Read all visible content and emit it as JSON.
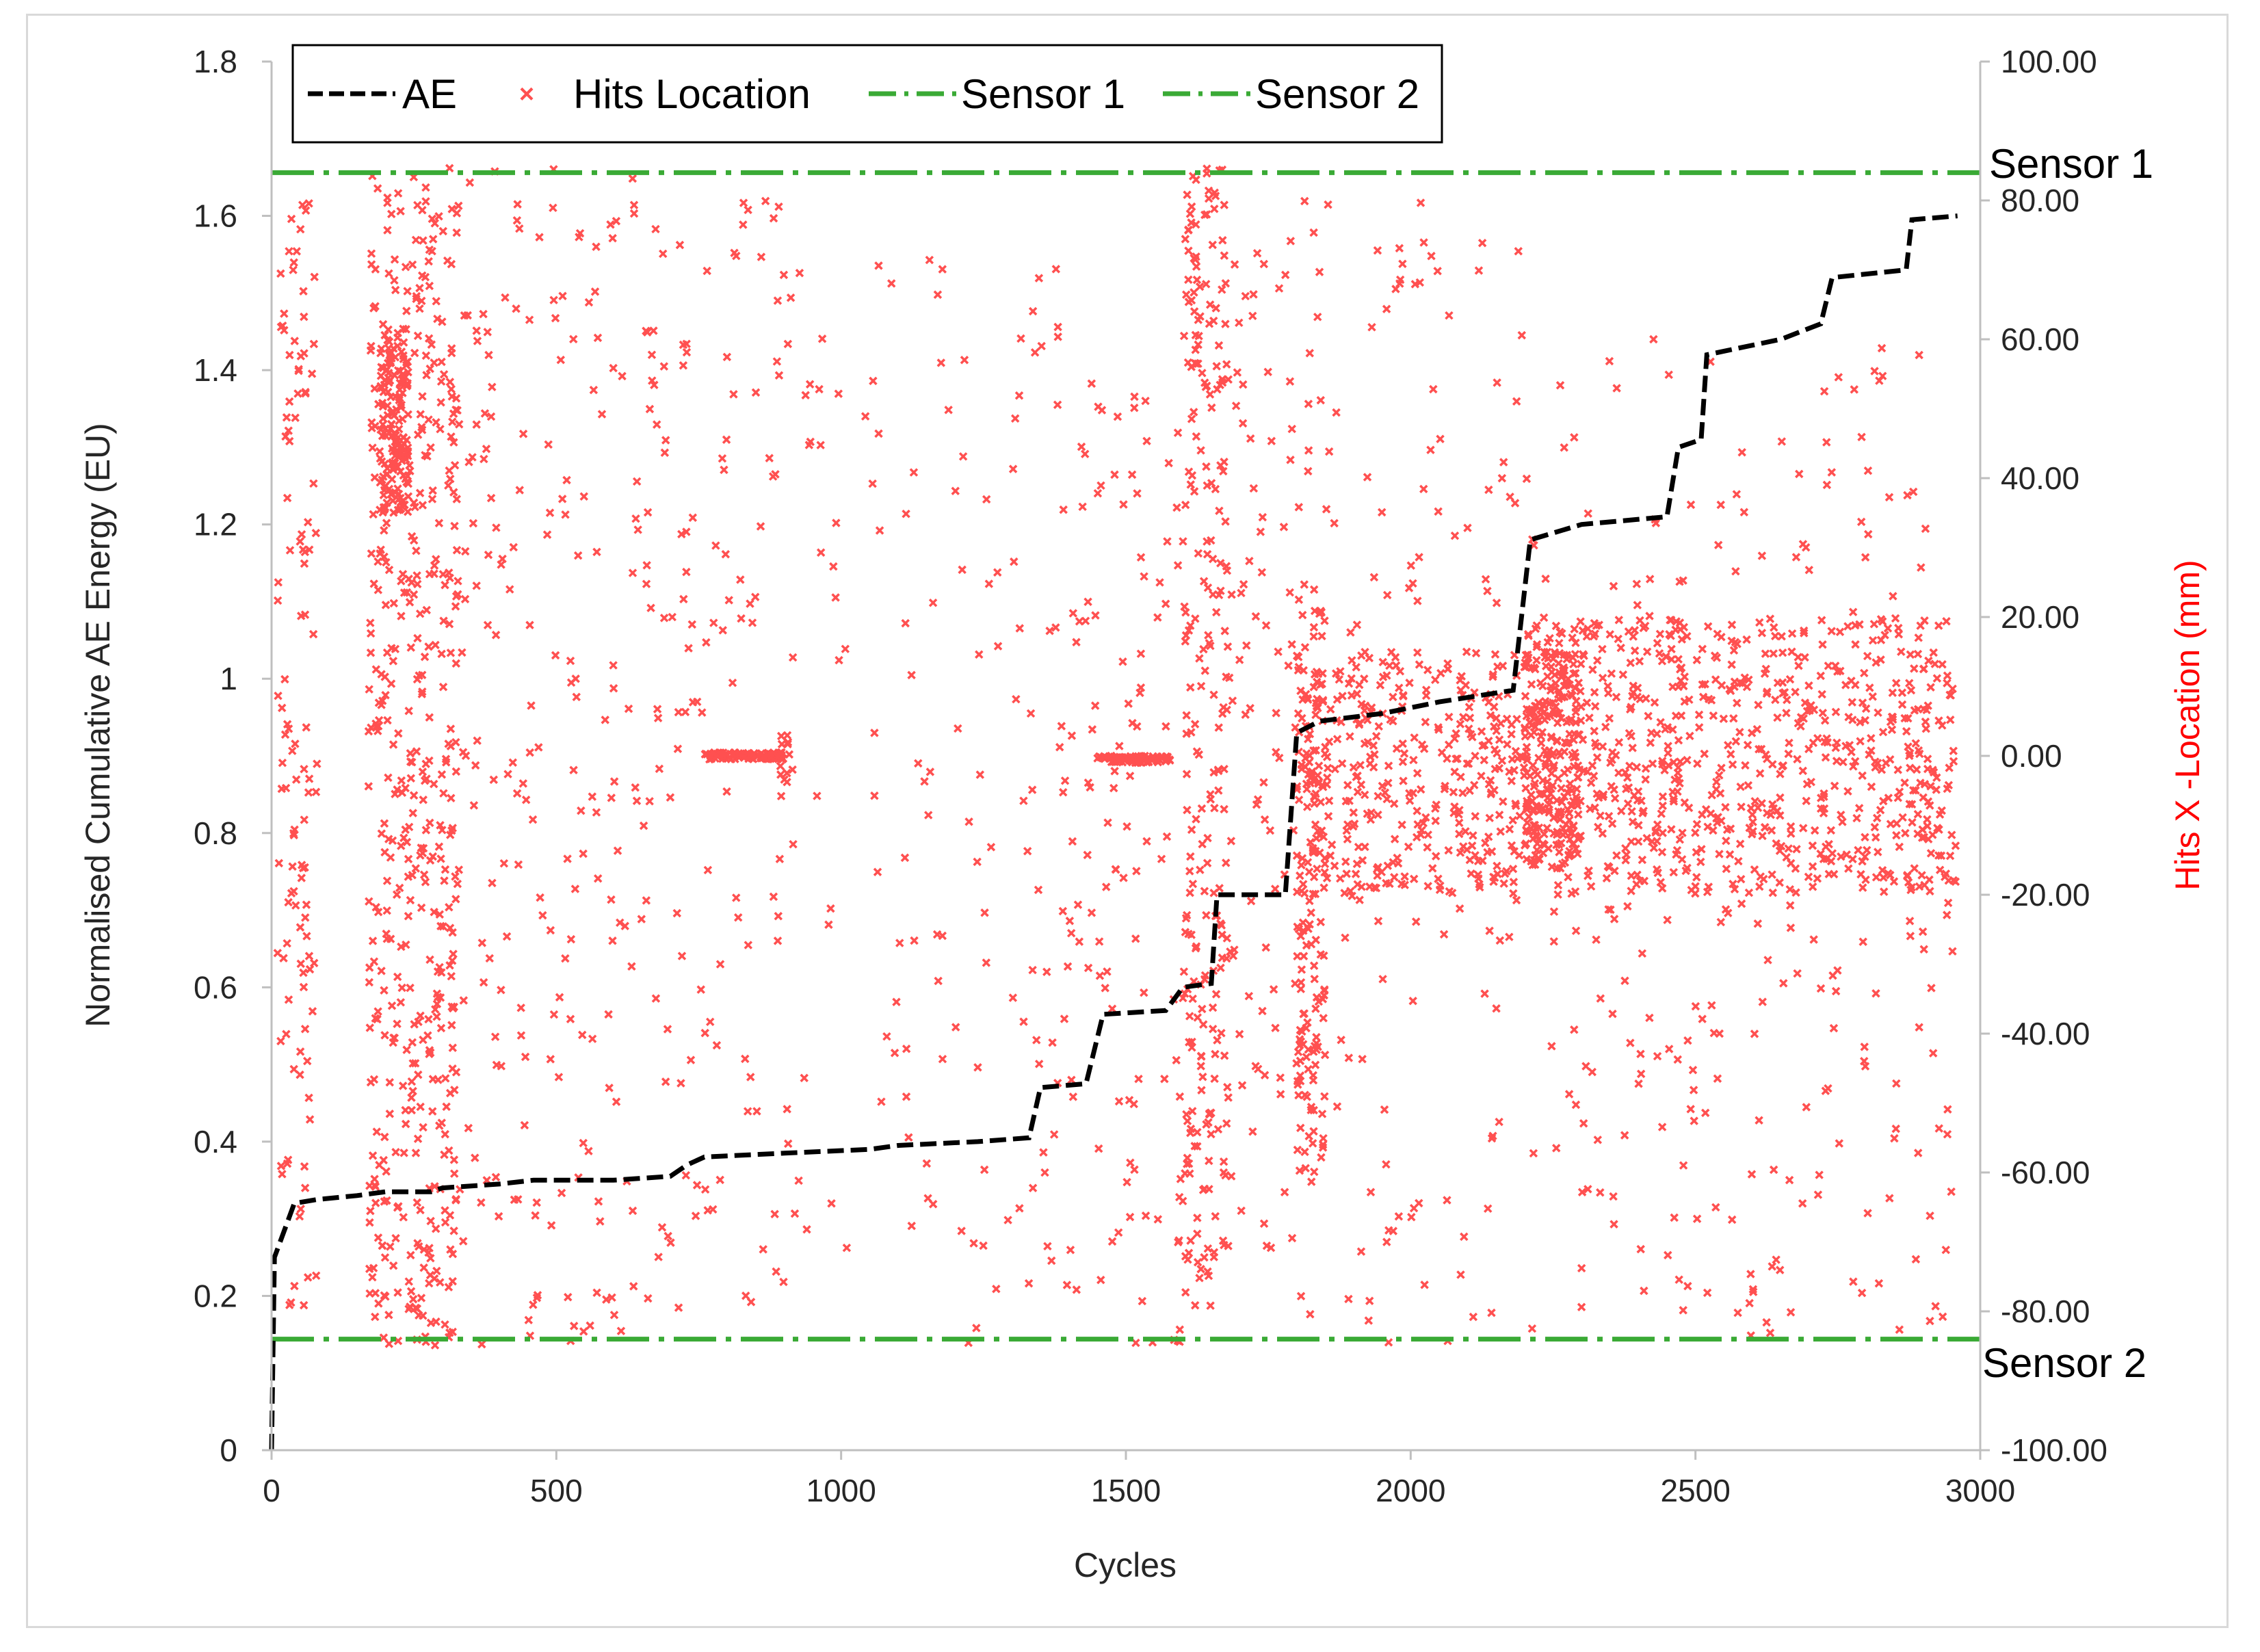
{
  "chart_data": {
    "type": "line",
    "title": "",
    "xlabel": "Cycles",
    "ylabel": "Normalised Cumulative AE Energy (EU)",
    "y2label": "Hits X -Location (mm)",
    "xlim": [
      0,
      3000
    ],
    "ylim": [
      0,
      1.8
    ],
    "y2lim": [
      -100,
      100
    ],
    "x_ticks": [
      "0",
      "500",
      "1000",
      "1500",
      "2000",
      "2500",
      "3000"
    ],
    "y_ticks": [
      "0",
      "0.2",
      "0.4",
      "0.6",
      "0.8",
      "1",
      "1.2",
      "1.4",
      "1.6",
      "1.8"
    ],
    "y2_ticks": [
      "-100.00",
      "-80.00",
      "-60.00",
      "-40.00",
      "-20.00",
      "0.00",
      "20.00",
      "40.00",
      "60.00",
      "80.00",
      "100.00"
    ],
    "grid": false,
    "legend_position": "top-left",
    "legend": [
      "AE",
      "Hits Location",
      "Sensor 1",
      "Sensor 2"
    ],
    "colors": {
      "ae": "#000000",
      "hits": "#ff5050",
      "sensor": "#3aaa35",
      "hits_axis_label": "#ff0000"
    },
    "series": [
      {
        "name": "AE",
        "axis": "left",
        "style": "dashed",
        "points": [
          [
            0,
            0
          ],
          [
            5,
            0.25
          ],
          [
            20,
            0.28
          ],
          [
            40,
            0.32
          ],
          [
            80,
            0.325
          ],
          [
            150,
            0.33
          ],
          [
            200,
            0.335
          ],
          [
            280,
            0.335
          ],
          [
            300,
            0.34
          ],
          [
            400,
            0.345
          ],
          [
            460,
            0.35
          ],
          [
            600,
            0.35
          ],
          [
            700,
            0.355
          ],
          [
            730,
            0.37
          ],
          [
            760,
            0.38
          ],
          [
            900,
            0.385
          ],
          [
            1050,
            0.39
          ],
          [
            1100,
            0.395
          ],
          [
            1240,
            0.4
          ],
          [
            1330,
            0.405
          ],
          [
            1350,
            0.47
          ],
          [
            1430,
            0.475
          ],
          [
            1460,
            0.565
          ],
          [
            1570,
            0.57
          ],
          [
            1600,
            0.6
          ],
          [
            1650,
            0.605
          ],
          [
            1660,
            0.72
          ],
          [
            1780,
            0.72
          ],
          [
            1800,
            0.93
          ],
          [
            1840,
            0.945
          ],
          [
            1950,
            0.955
          ],
          [
            2050,
            0.97
          ],
          [
            2180,
            0.985
          ],
          [
            2210,
            1.18
          ],
          [
            2300,
            1.2
          ],
          [
            2450,
            1.21
          ],
          [
            2470,
            1.3
          ],
          [
            2510,
            1.31
          ],
          [
            2520,
            1.42
          ],
          [
            2650,
            1.44
          ],
          [
            2720,
            1.46
          ],
          [
            2740,
            1.52
          ],
          [
            2870,
            1.53
          ],
          [
            2880,
            1.595
          ],
          [
            2960,
            1.6
          ]
        ]
      },
      {
        "name": "Hits Location",
        "axis": "right",
        "style": "markers",
        "clusters": [
          {
            "x": [
              10,
              80
            ],
            "y": [
              -80,
              80
            ],
            "n": 120
          },
          {
            "x": [
              170,
              330
            ],
            "y": [
              -85,
              85
            ],
            "n": 500
          },
          {
            "x": [
              190,
              240
            ],
            "y": [
              35,
              60
            ],
            "n": 150
          },
          {
            "x": [
              330,
              700
            ],
            "y": [
              -85,
              85
            ],
            "n": 220
          },
          {
            "x": [
              700,
              950
            ],
            "y": [
              -80,
              80
            ],
            "n": 110
          },
          {
            "x": [
              760,
              900
            ],
            "y": [
              -0.5,
              0.5
            ],
            "n": 90
          },
          {
            "x": [
              890,
              920
            ],
            "y": [
              -6,
              3
            ],
            "n": 12
          },
          {
            "x": [
              950,
              1400
            ],
            "y": [
              -85,
              75
            ],
            "n": 130
          },
          {
            "x": [
              1400,
              1600
            ],
            "y": [
              -85,
              55
            ],
            "n": 110
          },
          {
            "x": [
              1450,
              1580
            ],
            "y": [
              -1,
              0
            ],
            "n": 80
          },
          {
            "x": [
              1600,
              1680
            ],
            "y": [
              -80,
              85
            ],
            "n": 260
          },
          {
            "x": [
              1680,
              1800
            ],
            "y": [
              -75,
              75
            ],
            "n": 80
          },
          {
            "x": [
              1800,
              1850
            ],
            "y": [
              -60,
              25
            ],
            "n": 160
          },
          {
            "x": [
              1820,
              2200
            ],
            "y": [
              -20,
              15
            ],
            "n": 320
          },
          {
            "x": [
              1800,
              2200
            ],
            "y": [
              -85,
              80
            ],
            "n": 140
          },
          {
            "x": [
              2200,
              2300
            ],
            "y": [
              -15,
              15
            ],
            "n": 200
          },
          {
            "x": [
              2200,
              2960
            ],
            "y": [
              -20,
              20
            ],
            "n": 700
          },
          {
            "x": [
              2200,
              2960
            ],
            "y": [
              -85,
              60
            ],
            "n": 260
          }
        ]
      },
      {
        "name": "Sensor 1",
        "axis": "right",
        "style": "dash-dot",
        "y": 84
      },
      {
        "name": "Sensor 2",
        "axis": "right",
        "style": "dash-dot",
        "y": -84
      }
    ],
    "annotations": [
      "Sensor 1",
      "Sensor 2"
    ]
  }
}
